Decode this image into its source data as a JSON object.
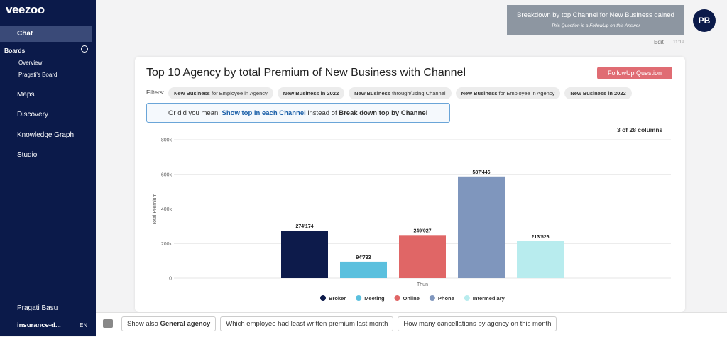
{
  "sidebar": {
    "logo": "veezoo",
    "nav": [
      "Chat",
      "Maps",
      "Discovery",
      "Knowledge Graph",
      "Studio"
    ],
    "boards_title": "Boards",
    "boards": [
      "Overview",
      "Pragati's Board"
    ],
    "user": "Pragati Basu",
    "workspace": "insurance-d...",
    "language": "EN"
  },
  "header": {
    "question": "Breakdown by top Channel for New Business gained",
    "followup_note": "This Question is a FollowUp on",
    "followup_link": "this Answer",
    "avatar": "PB",
    "edit": "Edit",
    "time": "11:19"
  },
  "answer": {
    "title": "Top 10 Agency by total Premium of New Business with Channel",
    "followup_button": "FollowUp Question",
    "filters_label": "Filters:",
    "filters": [
      {
        "bold": "New Business",
        "rest": "for Employee in Agency"
      },
      {
        "bold": "New Business in 2022"
      },
      {
        "bold": "New Business",
        "rest": "through/using Channel"
      },
      {
        "bold": "New Business",
        "rest": "for Employee in Agency"
      },
      {
        "bold": "New Business in 2022"
      }
    ],
    "hint": {
      "prefix": "Or did you mean:",
      "link": "Show top in each Channel",
      "middle": "instead of",
      "bold": "Break down top by Channel"
    },
    "columns": "3 of 28 columns"
  },
  "chart": {
    "type": "bar",
    "y_label": "Total Premium",
    "categories": [
      "Thun"
    ],
    "series": [
      {
        "name": "Broker",
        "color": "#0d1b4b",
        "values": [
          274174
        ],
        "value_labels": [
          "274'174"
        ]
      },
      {
        "name": "Meeting",
        "color": "#5bc0de",
        "values": [
          94733
        ],
        "value_labels": [
          "94'733"
        ]
      },
      {
        "name": "Online",
        "color": "#e06666",
        "values": [
          249027
        ],
        "value_labels": [
          "249'027"
        ]
      },
      {
        "name": "Phone",
        "color": "#7f96bd",
        "values": [
          587446
        ],
        "value_labels": [
          "587'446"
        ]
      },
      {
        "name": "Intermediary",
        "color": "#b8ecee",
        "values": [
          213526
        ],
        "value_labels": [
          "213'526"
        ]
      }
    ],
    "ylim": [
      0,
      800000
    ],
    "yticks": [
      0,
      {
        "value": 200000,
        "label": "200k"
      },
      {
        "value": 400000,
        "label": "400k"
      },
      {
        "value": 600000,
        "label": "600k"
      },
      {
        "value": 800000,
        "label": "800k"
      }
    ],
    "grid": true
  },
  "suggestions": [
    {
      "text": "Show also",
      "bold": "General agency"
    },
    {
      "text": "Which employee had least written premium last month"
    },
    {
      "text": "How many cancellations by agency on this month"
    }
  ]
}
